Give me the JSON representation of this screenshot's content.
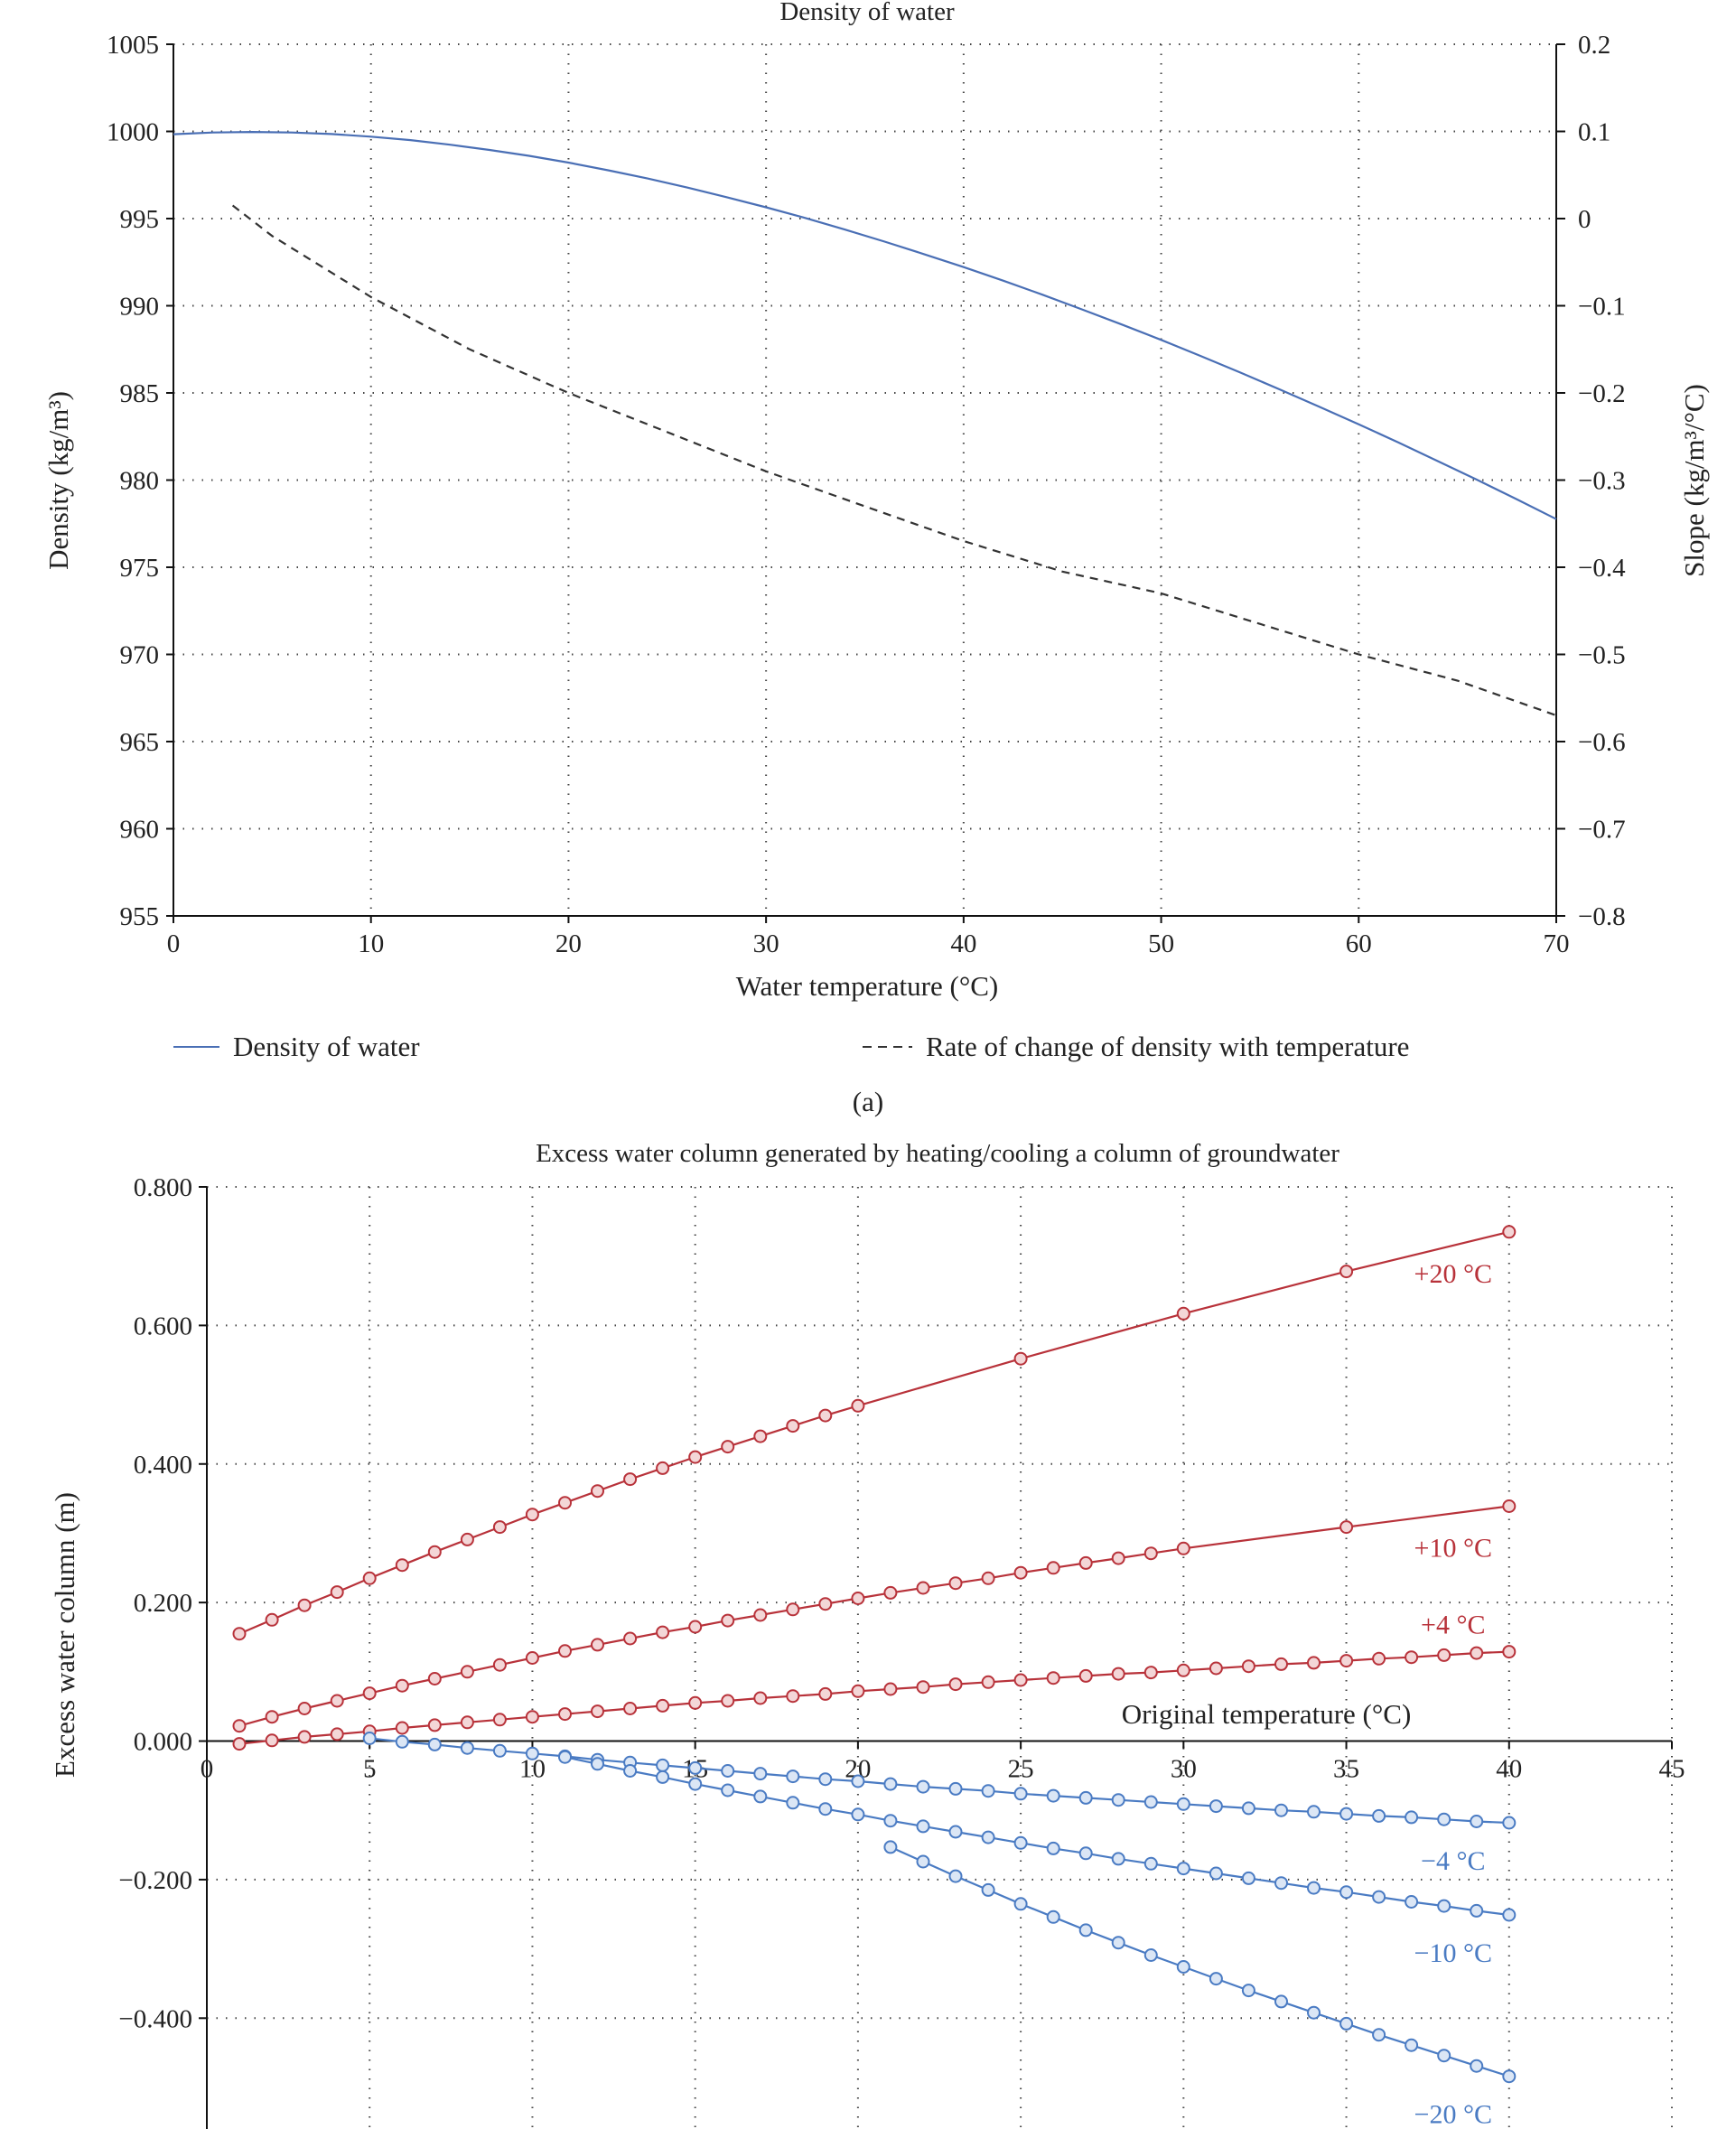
{
  "chart_data": [
    {
      "type": "line",
      "title": "Density of water",
      "xlabel": "Water temperature (°C)",
      "ylabel": "Density (kg/m³)",
      "y2label": "Slope (kg/m³/°C)",
      "xlim": [
        0,
        70
      ],
      "ylim": [
        955,
        1005
      ],
      "y2lim": [
        -0.8,
        0.2
      ],
      "x_ticks": [
        "0",
        "10",
        "20",
        "30",
        "40",
        "50",
        "60",
        "70"
      ],
      "y_ticks": [
        "955",
        "960",
        "965",
        "970",
        "975",
        "980",
        "985",
        "990",
        "995",
        "1000",
        "1005"
      ],
      "y2_ticks": [
        "−0.8",
        "−0.7",
        "−0.6",
        "−0.5",
        "−0.4",
        "−0.3",
        "−0.2",
        "−0.1",
        "0",
        "0.1",
        "0.2"
      ],
      "grid": true,
      "legend_position": "bottom",
      "series": [
        {
          "name": "Density of water",
          "axis": "left",
          "color": "#4a6fb5",
          "style": "solid",
          "x": [
            0,
            2,
            4,
            6,
            8,
            10,
            12,
            14,
            16,
            18,
            20,
            22,
            24,
            26,
            28,
            30,
            32,
            34,
            36,
            38,
            40,
            42,
            44,
            46,
            48,
            50,
            52,
            54,
            56,
            58,
            60,
            62,
            64,
            66,
            68,
            70
          ],
          "y": [
            999.84,
            999.94,
            999.97,
            999.94,
            999.85,
            999.7,
            999.5,
            999.24,
            998.94,
            998.6,
            998.21,
            997.77,
            997.3,
            996.78,
            996.23,
            995.65,
            995.03,
            994.37,
            993.68,
            992.96,
            992.22,
            991.44,
            990.63,
            989.79,
            988.93,
            988.04,
            987.12,
            986.17,
            985.2,
            984.21,
            983.2,
            982.16,
            981.09,
            980.01,
            978.9,
            977.76
          ]
        },
        {
          "name": "Rate of change of density with temperature",
          "axis": "right",
          "color": "#333333",
          "style": "dashed",
          "x": [
            3,
            5,
            10,
            15,
            20,
            25,
            30,
            35,
            40,
            45,
            50,
            55,
            60,
            65,
            70
          ],
          "y": [
            0.015,
            -0.02,
            -0.09,
            -0.15,
            -0.2,
            -0.245,
            -0.29,
            -0.33,
            -0.37,
            -0.405,
            -0.43,
            -0.465,
            -0.5,
            -0.53,
            -0.57
          ]
        }
      ],
      "caption": "(a)"
    },
    {
      "type": "line",
      "title": "Excess water column generated by heating/cooling a column of groundwater",
      "xlabel": "Original temperature (°C)",
      "ylabel": "Excess water column (m)",
      "xlim": [
        0,
        45
      ],
      "ylim": [
        -0.56,
        0.8
      ],
      "x_ticks": [
        "0",
        "5",
        "10",
        "15",
        "20",
        "25",
        "30",
        "35",
        "40",
        "45"
      ],
      "y_ticks": [
        "−0.400",
        "−0.200",
        "0.000",
        "0.200",
        "0.400",
        "0.600",
        "0.800"
      ],
      "grid": true,
      "series": [
        {
          "name": "+20 °C",
          "color": "#b8323a",
          "x": [
            1,
            2,
            3,
            4,
            5,
            6,
            7,
            8,
            9,
            10,
            11,
            12,
            13,
            14,
            15,
            16,
            17,
            18,
            19,
            20,
            25,
            30,
            35,
            40
          ],
          "y": [
            0.155,
            0.175,
            0.196,
            0.215,
            0.235,
            0.254,
            0.273,
            0.291,
            0.309,
            0.327,
            0.344,
            0.361,
            0.378,
            0.394,
            0.41,
            0.425,
            0.44,
            0.455,
            0.47,
            0.484,
            0.552,
            0.617,
            0.678,
            0.735
          ]
        },
        {
          "name": "+10 °C",
          "color": "#b8323a",
          "x": [
            1,
            2,
            3,
            4,
            5,
            6,
            7,
            8,
            9,
            10,
            11,
            12,
            13,
            14,
            15,
            16,
            17,
            18,
            19,
            20,
            21,
            22,
            23,
            24,
            25,
            26,
            27,
            28,
            29,
            30,
            35,
            40
          ],
          "y": [
            0.022,
            0.035,
            0.047,
            0.058,
            0.069,
            0.08,
            0.09,
            0.1,
            0.11,
            0.12,
            0.13,
            0.139,
            0.148,
            0.157,
            0.165,
            0.174,
            0.182,
            0.19,
            0.198,
            0.206,
            0.214,
            0.221,
            0.228,
            0.235,
            0.243,
            0.25,
            0.257,
            0.264,
            0.271,
            0.278,
            0.309,
            0.339
          ]
        },
        {
          "name": "+4 °C",
          "color": "#b8323a",
          "x": [
            1,
            2,
            3,
            4,
            5,
            6,
            7,
            8,
            9,
            10,
            11,
            12,
            13,
            14,
            15,
            16,
            17,
            18,
            19,
            20,
            21,
            22,
            23,
            24,
            25,
            26,
            27,
            28,
            29,
            30,
            31,
            32,
            33,
            34,
            35,
            36,
            37,
            38,
            39,
            40
          ],
          "y": [
            -0.004,
            0.001,
            0.006,
            0.01,
            0.014,
            0.019,
            0.023,
            0.027,
            0.031,
            0.035,
            0.039,
            0.043,
            0.047,
            0.051,
            0.055,
            0.058,
            0.062,
            0.065,
            0.068,
            0.072,
            0.075,
            0.078,
            0.082,
            0.085,
            0.088,
            0.091,
            0.094,
            0.097,
            0.099,
            0.102,
            0.105,
            0.108,
            0.111,
            0.113,
            0.116,
            0.119,
            0.121,
            0.124,
            0.127,
            0.129
          ]
        },
        {
          "name": "−4 °C",
          "color": "#4a7bc3",
          "x": [
            5,
            6,
            7,
            8,
            9,
            10,
            11,
            12,
            13,
            14,
            15,
            16,
            17,
            18,
            19,
            20,
            21,
            22,
            23,
            24,
            25,
            26,
            27,
            28,
            29,
            30,
            31,
            32,
            33,
            34,
            35,
            36,
            37,
            38,
            39,
            40
          ],
          "y": [
            0.004,
            -0.001,
            -0.005,
            -0.01,
            -0.014,
            -0.018,
            -0.022,
            -0.027,
            -0.031,
            -0.035,
            -0.039,
            -0.043,
            -0.047,
            -0.051,
            -0.055,
            -0.058,
            -0.062,
            -0.066,
            -0.069,
            -0.072,
            -0.076,
            -0.079,
            -0.082,
            -0.085,
            -0.088,
            -0.091,
            -0.094,
            -0.097,
            -0.1,
            -0.102,
            -0.105,
            -0.108,
            -0.11,
            -0.113,
            -0.116,
            -0.118
          ]
        },
        {
          "name": "−10 °C",
          "color": "#4a7bc3",
          "x": [
            11,
            12,
            13,
            14,
            15,
            16,
            17,
            18,
            19,
            20,
            21,
            22,
            23,
            24,
            25,
            26,
            27,
            28,
            29,
            30,
            31,
            32,
            33,
            34,
            35,
            36,
            37,
            38,
            39,
            40
          ],
          "y": [
            -0.023,
            -0.033,
            -0.043,
            -0.052,
            -0.062,
            -0.071,
            -0.08,
            -0.089,
            -0.098,
            -0.106,
            -0.115,
            -0.123,
            -0.131,
            -0.139,
            -0.147,
            -0.155,
            -0.162,
            -0.17,
            -0.177,
            -0.184,
            -0.191,
            -0.198,
            -0.205,
            -0.212,
            -0.218,
            -0.225,
            -0.232,
            -0.238,
            -0.245,
            -0.251
          ]
        },
        {
          "name": "−20 °C",
          "color": "#4a7bc3",
          "x": [
            21,
            22,
            23,
            24,
            25,
            26,
            27,
            28,
            29,
            30,
            31,
            32,
            33,
            34,
            35,
            36,
            37,
            38,
            39,
            40
          ],
          "y": [
            -0.153,
            -0.174,
            -0.195,
            -0.215,
            -0.235,
            -0.254,
            -0.273,
            -0.291,
            -0.309,
            -0.326,
            -0.343,
            -0.36,
            -0.376,
            -0.392,
            -0.408,
            -0.424,
            -0.439,
            -0.454,
            -0.469,
            -0.484
          ]
        }
      ]
    }
  ]
}
